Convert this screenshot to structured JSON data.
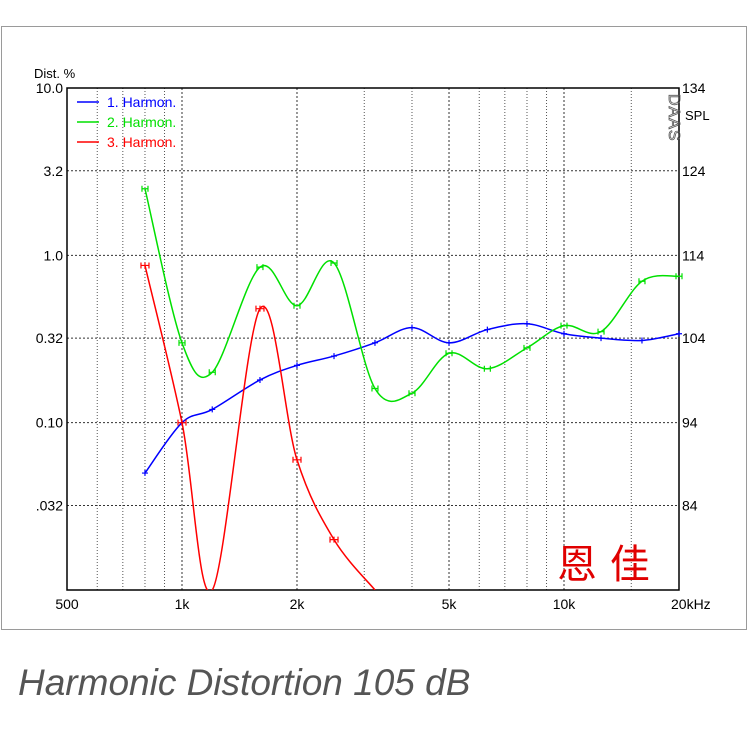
{
  "caption": "Harmonic Distortion 105 dB",
  "watermark": "恩 佳",
  "brand_mark": "DAAS",
  "chart_data": {
    "type": "line",
    "left_axis_label": "Dist. %",
    "right_axis_label": "SPL",
    "x_scale": "log",
    "xlim": [
      500,
      20000
    ],
    "x_ticks": [
      {
        "value": 500,
        "label": "500"
      },
      {
        "value": 1000,
        "label": "1k"
      },
      {
        "value": 2000,
        "label": "2k"
      },
      {
        "value": 5000,
        "label": "5k"
      },
      {
        "value": 10000,
        "label": "10k"
      },
      {
        "value": 20000,
        "label": "20kHz"
      }
    ],
    "y_scale": "log",
    "ylim": [
      0.01,
      10
    ],
    "y_ticks": [
      {
        "value": 10,
        "label": "10.0"
      },
      {
        "value": 3.2,
        "label": "3.2"
      },
      {
        "value": 1.0,
        "label": "1.0"
      },
      {
        "value": 0.32,
        "label": "0.32"
      },
      {
        "value": 0.1,
        "label": "0.10"
      },
      {
        "value": 0.032,
        "label": ".032"
      }
    ],
    "y_right_ticks": [
      "134",
      "124",
      "114",
      "104",
      "94",
      "84"
    ],
    "grid": true,
    "legend_position": "top-left",
    "colors": {
      "h1": "#0000ff",
      "h2": "#00e000",
      "h3": "#ff0000",
      "watermark": "#e00000",
      "caption": "#555555"
    },
    "series": [
      {
        "name": "1. Harmon.",
        "color": "#0000ff",
        "x": [
          800,
          1000,
          1200,
          1600,
          2000,
          2500,
          3200,
          4000,
          5000,
          6300,
          8000,
          10000,
          12500,
          16000,
          20000
        ],
        "y": [
          0.05,
          0.1,
          0.12,
          0.18,
          0.22,
          0.25,
          0.3,
          0.37,
          0.3,
          0.36,
          0.39,
          0.34,
          0.32,
          0.31,
          0.34
        ]
      },
      {
        "name": "2. Harmon.",
        "color": "#00e000",
        "x": [
          800,
          1000,
          1200,
          1600,
          2000,
          2500,
          3200,
          4000,
          5000,
          6300,
          8000,
          10000,
          12500,
          16000,
          20000
        ],
        "y": [
          2.5,
          0.3,
          0.2,
          0.85,
          0.5,
          0.9,
          0.16,
          0.15,
          0.26,
          0.21,
          0.28,
          0.38,
          0.35,
          0.7,
          0.75
        ]
      },
      {
        "name": "3. Harmon.",
        "color": "#ff0000",
        "x": [
          800,
          1000,
          1200,
          1600,
          2000,
          2500,
          3200
        ],
        "y": [
          0.87,
          0.1,
          0.01,
          0.48,
          0.06,
          0.02,
          0.01
        ]
      }
    ]
  }
}
